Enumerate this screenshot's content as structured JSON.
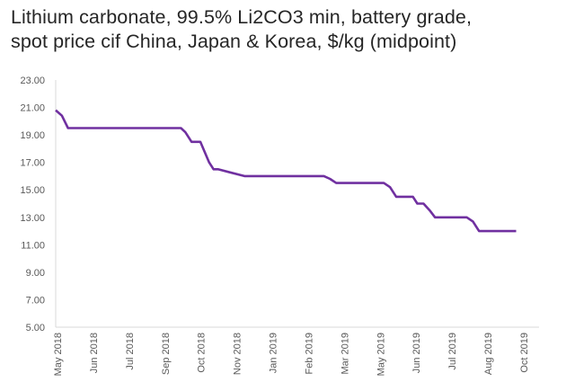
{
  "title_line1": "Lithium carbonate, 99.5% Li2CO3 min, battery grade,",
  "title_line2": "spot price cif China, Japan & Korea, $/kg (midpoint)",
  "colors": {
    "line": "#7030A0",
    "axis": "#d9d9d9",
    "text": "#262626"
  },
  "chart_data": {
    "type": "line",
    "title": "Lithium carbonate, 99.5% Li2CO3 min, battery grade, spot price cif China, Japan & Korea, $/kg (midpoint)",
    "xlabel": "",
    "ylabel": "",
    "ylim": [
      5,
      23
    ],
    "y_ticks": [
      "5.00",
      "7.00",
      "9.00",
      "11.00",
      "13.00",
      "15.00",
      "17.00",
      "19.00",
      "21.00",
      "23.00"
    ],
    "x_ticks": [
      "May 2018",
      "Jun 2018",
      "Jul 2018",
      "Sep 2018",
      "Oct 2018",
      "Nov 2018",
      "Jan 2019",
      "Feb 2019",
      "Mar 2019",
      "May 2019",
      "Jun 2019",
      "Jul 2019",
      "Aug 2019",
      "Oct 2019"
    ],
    "grid": false,
    "legend": "none",
    "series": [
      {
        "x": [
          "2018-05-01",
          "2018-05-08",
          "2018-05-15",
          "2018-06-01",
          "2018-07-01",
          "2018-08-01",
          "2018-09-01",
          "2018-09-20",
          "2018-09-25",
          "2018-10-02",
          "2018-10-07",
          "2018-10-12",
          "2018-10-22",
          "2018-10-27",
          "2018-11-01",
          "2018-12-01",
          "2019-01-01",
          "2019-02-01",
          "2019-03-01",
          "2019-03-08",
          "2019-03-15",
          "2019-04-01",
          "2019-05-01",
          "2019-05-08",
          "2019-05-15",
          "2019-05-22",
          "2019-06-01",
          "2019-06-10",
          "2019-06-15",
          "2019-06-22",
          "2019-06-29",
          "2019-07-05",
          "2019-07-12",
          "2019-07-22",
          "2019-08-01",
          "2019-08-10",
          "2019-08-17",
          "2019-08-24",
          "2019-08-29",
          "2019-09-10",
          "2019-10-01",
          "2019-10-05"
        ],
        "values": [
          20.8,
          20.4,
          19.5,
          19.5,
          19.5,
          19.5,
          19.5,
          19.5,
          19.2,
          18.5,
          18.5,
          18.5,
          17.0,
          16.5,
          16.5,
          16.0,
          16.0,
          16.0,
          16.0,
          15.8,
          15.5,
          15.5,
          15.5,
          15.5,
          15.2,
          14.5,
          14.5,
          14.5,
          14.0,
          14.0,
          13.5,
          13.0,
          13.0,
          13.0,
          13.0,
          13.0,
          12.7,
          12.0,
          12.0,
          12.0,
          12.0,
          12.0
        ]
      }
    ]
  }
}
